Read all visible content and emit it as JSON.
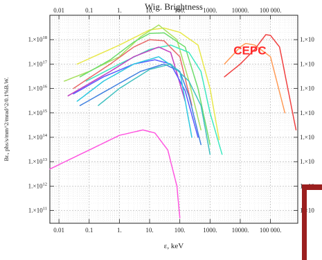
{
  "chart_data": {
    "type": "line",
    "title": "Wig. Brightness",
    "xlabel": "ε, keV",
    "ylabel": "Br., phs/s/mm^2/mrad^2/0.1%B.W.",
    "x_scale": "log",
    "y_scale": "log",
    "xlim": [
      0.005,
      800000
    ],
    "ylim": [
      30000000000.0,
      1e+19
    ],
    "grid": true,
    "x_ticks": [
      {
        "value": 0.01,
        "label": "0.01"
      },
      {
        "value": 0.1,
        "label": "0.1"
      },
      {
        "value": 1,
        "label": "1."
      },
      {
        "value": 10,
        "label": "10."
      },
      {
        "value": 100,
        "label": "100."
      },
      {
        "value": 1000,
        "label": "1000."
      },
      {
        "value": 10000,
        "label": "10000."
      },
      {
        "value": 100000,
        "label": "100 000."
      }
    ],
    "y_ticks": [
      {
        "value": 100000000000.0,
        "label": "1.×10",
        "exp": "11"
      },
      {
        "value": 1000000000000.0,
        "label": "1.×10",
        "exp": "12"
      },
      {
        "value": 10000000000000.0,
        "label": "1.×10",
        "exp": "13"
      },
      {
        "value": 100000000000000.0,
        "label": "1.×10",
        "exp": "14"
      },
      {
        "value": 1000000000000000.0,
        "label": "1.×10",
        "exp": "15"
      },
      {
        "value": 1e+16,
        "label": "1.×10",
        "exp": "16"
      },
      {
        "value": 1e+17,
        "label": "1.×10",
        "exp": "17"
      },
      {
        "value": 1e+18,
        "label": "1.×10",
        "exp": "18"
      }
    ],
    "right_tick_label": "1.×10",
    "annotation": {
      "text": "CEPC",
      "color": "#ff2a2a",
      "x": 6000,
      "y": 2.5e+17
    },
    "series": [
      {
        "color": "#ff9a55",
        "x": [
          3000,
          10000,
          15000,
          30000,
          100000,
          300000
        ],
        "y": [
          1e+17,
          5e+17,
          7e+17,
          6e+17,
          2e+17,
          1000000000000000.0
        ]
      },
      {
        "color": "#f04040",
        "x": [
          3000,
          10000,
          30000,
          70000,
          100000,
          200000,
          700000
        ],
        "y": [
          3e+16,
          1e+17,
          4e+17,
          1.6e+18,
          1.5e+18,
          5e+17,
          200000000000000.0
        ]
      },
      {
        "color": "#e8e84a",
        "x": [
          0.04,
          1,
          10,
          30,
          100,
          400,
          1000,
          2000
        ],
        "y": [
          1e+17,
          6e+17,
          2.5e+18,
          3e+18,
          2e+18,
          6e+17,
          1e+16,
          80000000000000.0
        ]
      },
      {
        "color": "#a8e060",
        "x": [
          0.015,
          0.1,
          1,
          5,
          20,
          80,
          200,
          500
        ],
        "y": [
          2e+16,
          5e+16,
          2e+17,
          1.3e+18,
          4e+18,
          1e+18,
          2e+16,
          200000000000000.0
        ]
      },
      {
        "color": "#6bdc6b",
        "x": [
          0.05,
          0.5,
          3,
          10,
          30,
          150,
          400,
          1000
        ],
        "y": [
          3e+16,
          1.5e+17,
          8e+17,
          1.8e+18,
          1.9e+18,
          5e+17,
          1e+16,
          50000000000000.0
        ]
      },
      {
        "color": "#3ee8c0",
        "x": [
          0.08,
          1,
          10,
          50,
          200,
          500,
          1000,
          2500
        ],
        "y": [
          2e+16,
          1e+17,
          4e+17,
          6e+17,
          3e+17,
          5e+16,
          1000000000000000.0,
          20000000000000.0
        ]
      },
      {
        "color": "#e86868",
        "x": [
          0.03,
          0.5,
          3,
          10,
          30,
          100,
          250
        ],
        "y": [
          1e+16,
          1e+17,
          5e+17,
          1e+18,
          9e+17,
          2e+17,
          2000000000000000.0
        ]
      },
      {
        "color": "#c040c0",
        "x": [
          0.02,
          0.5,
          3,
          20,
          50,
          150
        ],
        "y": [
          5000000000000000.0,
          5e+16,
          2e+17,
          5e+17,
          3e+17,
          3000000000000000.0
        ]
      },
      {
        "color": "#5a5aff",
        "x": [
          0.03,
          0.3,
          3,
          15,
          50,
          150,
          400
        ],
        "y": [
          6000000000000000.0,
          3e+16,
          1e+17,
          1.5e+17,
          1e+17,
          8000000000000000.0,
          100000000000000.0
        ]
      },
      {
        "color": "#2dc8e0",
        "x": [
          0.04,
          0.3,
          3,
          20,
          100,
          250
        ],
        "y": [
          3000000000000000.0,
          2e+16,
          1e+17,
          2e+17,
          5e+16,
          100000000000000.0
        ]
      },
      {
        "color": "#4080e0",
        "x": [
          0.05,
          0.5,
          5,
          30,
          100,
          200,
          500
        ],
        "y": [
          2000000000000000.0,
          1e+16,
          5e+16,
          1e+17,
          5e+16,
          5000000000000000.0,
          50000000000000.0
        ]
      },
      {
        "color": "#40c0c0",
        "x": [
          0.2,
          1,
          10,
          50,
          200,
          500,
          1000
        ],
        "y": [
          2000000000000000.0,
          1e+16,
          6e+16,
          1e+17,
          2e+16,
          2000000000000000.0,
          20000000000000.0
        ]
      },
      {
        "color": "#ff55e0",
        "x": [
          0.005,
          0.1,
          1,
          6,
          15,
          40,
          80,
          100
        ],
        "y": [
          5000000000000.0,
          30000000000000.0,
          120000000000000.0,
          200000000000000.0,
          150000000000000.0,
          30000000000000.0,
          1000000000000.0,
          50000000000.0
        ]
      }
    ]
  }
}
